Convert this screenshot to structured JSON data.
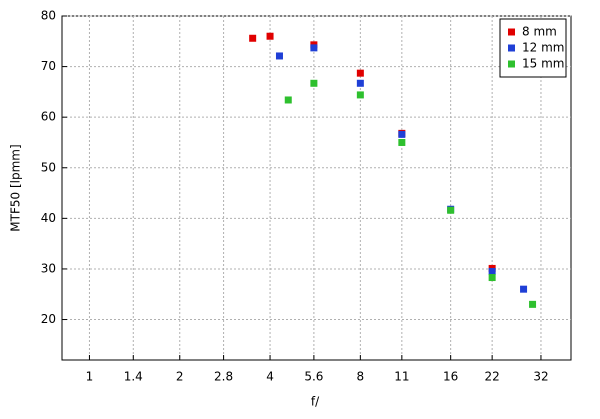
{
  "chart_data": {
    "type": "scatter",
    "xlabel": "f/",
    "ylabel": "MTF50 [lpmm]",
    "xscale": "log2",
    "xlim": [
      0.81,
      40.3
    ],
    "ylim": [
      12,
      80
    ],
    "xticks": [
      1,
      1.4,
      2,
      2.8,
      4,
      5.6,
      8,
      11,
      16,
      22,
      32
    ],
    "yticks": [
      20,
      30,
      40,
      50,
      60,
      70,
      80
    ],
    "grid": true,
    "legend": "upper right",
    "series": [
      {
        "name": "8 mm",
        "color": "#e00000",
        "x": [
          3.5,
          4,
          5.6,
          8,
          11,
          22
        ],
        "values": [
          75.6,
          76.0,
          74.3,
          68.7,
          56.8,
          30.1
        ]
      },
      {
        "name": "12 mm",
        "color": "#1f3fd6",
        "x": [
          4.3,
          5.6,
          8,
          11,
          16,
          22,
          28
        ],
        "values": [
          72.1,
          73.7,
          66.7,
          56.6,
          41.8,
          29.5,
          26.0
        ]
      },
      {
        "name": "15 mm",
        "color": "#2ec02e",
        "x": [
          4.6,
          5.6,
          8,
          11,
          16,
          22,
          30
        ],
        "values": [
          63.4,
          66.7,
          64.4,
          55.0,
          41.6,
          28.3,
          23.0
        ]
      }
    ]
  }
}
